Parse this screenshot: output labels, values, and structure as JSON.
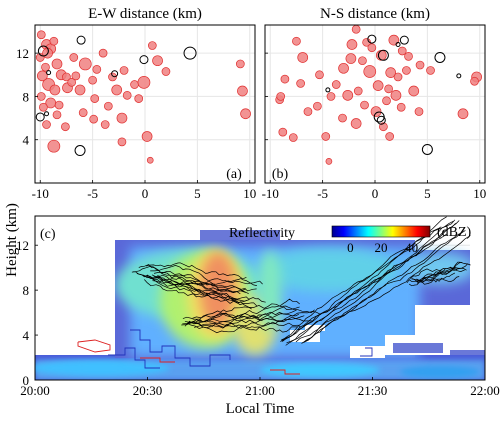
{
  "figure": {
    "ylabel": "Height (km)",
    "xlabel_bottom": "Local Time"
  },
  "colors": {
    "red_fill": "#f08080",
    "red_stroke": "#e03030",
    "hollow_stroke": "#000000",
    "grid": "#e6e6e6",
    "blue_trace": "#2233bb",
    "red_trace": "#dd2222"
  },
  "chart_data": [
    {
      "type": "scatter",
      "panel": "a",
      "title": "E-W distance (km)",
      "panel_label": "(a)",
      "xlim": [
        -10.5,
        10.5
      ],
      "ylim": [
        0,
        14.6
      ],
      "xticks": [
        -10,
        -5,
        0,
        5,
        10
      ],
      "yticks": [
        4,
        8,
        12
      ],
      "grid": true,
      "red_points": [
        [
          -9.9,
          13.7,
          4
        ],
        [
          -9.4,
          12.8,
          5
        ],
        [
          -9.0,
          12.4,
          5
        ],
        [
          -10.0,
          11.6,
          4
        ],
        [
          -8.4,
          11.0,
          5
        ],
        [
          -9.5,
          10.7,
          4
        ],
        [
          -9.8,
          9.9,
          5
        ],
        [
          -9.2,
          9.1,
          6
        ],
        [
          -8.6,
          8.6,
          5
        ],
        [
          -9.9,
          8.0,
          4
        ],
        [
          -9.0,
          7.4,
          5
        ],
        [
          -9.7,
          7.0,
          4
        ],
        [
          -8.2,
          7.2,
          4
        ],
        [
          -8.0,
          10.0,
          5
        ],
        [
          -7.5,
          9.8,
          4
        ],
        [
          -7.4,
          8.8,
          5
        ],
        [
          -7.0,
          9.3,
          4
        ],
        [
          -6.6,
          9.9,
          4
        ],
        [
          -6.8,
          11.6,
          4
        ],
        [
          -5.7,
          11.0,
          6
        ],
        [
          -6.2,
          8.6,
          5
        ],
        [
          -5.0,
          9.5,
          4
        ],
        [
          -4.6,
          10.5,
          4
        ],
        [
          -4.8,
          7.8,
          4
        ],
        [
          -5.9,
          6.5,
          4
        ],
        [
          -4.9,
          5.9,
          4
        ],
        [
          -3.1,
          9.8,
          4
        ],
        [
          -2.7,
          8.6,
          5
        ],
        [
          -2.0,
          10.4,
          4
        ],
        [
          -1.7,
          8.1,
          4
        ],
        [
          -3.5,
          7.1,
          4
        ],
        [
          -2.2,
          6.0,
          5
        ],
        [
          -3.8,
          5.4,
          4
        ],
        [
          -1.0,
          9.1,
          4
        ],
        [
          -0.6,
          7.8,
          4
        ],
        [
          -0.1,
          9.3,
          6
        ],
        [
          0.7,
          12.7,
          4
        ],
        [
          1.2,
          11.3,
          5
        ],
        [
          2.0,
          10.3,
          4
        ],
        [
          0.2,
          4.3,
          5
        ],
        [
          -2.2,
          3.8,
          4
        ],
        [
          -8.7,
          3.4,
          6
        ],
        [
          -9.4,
          5.4,
          4
        ],
        [
          -7.6,
          5.2,
          4
        ],
        [
          -8.4,
          6.3,
          4
        ],
        [
          0.5,
          2.1,
          3
        ],
        [
          9.3,
          8.5,
          5
        ],
        [
          9.6,
          6.4,
          5
        ],
        [
          9.1,
          11.0,
          4
        ],
        [
          -9.3,
          12.0,
          5
        ],
        [
          -8.7,
          13.1,
          4
        ],
        [
          -4.0,
          12.0,
          4
        ]
      ],
      "hollow_points": [
        [
          -9.7,
          12.2,
          5
        ],
        [
          -6.1,
          13.2,
          4
        ],
        [
          -2.9,
          10.1,
          3
        ],
        [
          -0.1,
          11.4,
          4
        ],
        [
          4.3,
          12.0,
          6
        ],
        [
          -10.0,
          6.1,
          4
        ],
        [
          -9.4,
          6.4,
          2
        ],
        [
          -6.2,
          3.0,
          5
        ],
        [
          -9.2,
          10.2,
          2
        ]
      ]
    },
    {
      "type": "scatter",
      "panel": "b",
      "title": "N-S distance (km)",
      "panel_label": "(b)",
      "xlim": [
        -10.5,
        10.5
      ],
      "ylim": [
        0,
        14.6
      ],
      "xticks": [
        -10,
        -5,
        0,
        5,
        10
      ],
      "yticks": [
        4,
        8,
        12
      ],
      "grid": true,
      "red_points": [
        [
          -1.8,
          14.2,
          4
        ],
        [
          -2.2,
          12.8,
          5
        ],
        [
          -0.8,
          13.0,
          4
        ],
        [
          -2.3,
          11.5,
          5
        ],
        [
          -3.0,
          10.6,
          5
        ],
        [
          -1.2,
          11.3,
          4
        ],
        [
          -0.5,
          10.3,
          6
        ],
        [
          0.6,
          11.8,
          5
        ],
        [
          1.8,
          13.2,
          5
        ],
        [
          2.6,
          12.2,
          4
        ],
        [
          1.5,
          10.2,
          5
        ],
        [
          2.2,
          9.8,
          4
        ],
        [
          3.0,
          10.4,
          4
        ],
        [
          0.3,
          9.0,
          5
        ],
        [
          1.3,
          8.7,
          4
        ],
        [
          2.0,
          8.1,
          5
        ],
        [
          -1.6,
          8.5,
          4
        ],
        [
          -2.6,
          8.1,
          5
        ],
        [
          -3.7,
          9.1,
          4
        ],
        [
          -4.2,
          8.0,
          4
        ],
        [
          -1.0,
          7.2,
          4
        ],
        [
          0.1,
          6.6,
          5
        ],
        [
          1.1,
          7.6,
          4
        ],
        [
          2.5,
          7.0,
          4
        ],
        [
          -7.5,
          13.1,
          4
        ],
        [
          -6.9,
          11.6,
          5
        ],
        [
          -5.3,
          10.0,
          4
        ],
        [
          -8.6,
          9.6,
          4
        ],
        [
          -7.1,
          9.2,
          4
        ],
        [
          -5.5,
          7.1,
          4
        ],
        [
          -9.1,
          7.7,
          4
        ],
        [
          -6.4,
          6.6,
          4
        ],
        [
          -3.1,
          6.0,
          4
        ],
        [
          -8.8,
          4.7,
          4
        ],
        [
          -7.8,
          4.2,
          4
        ],
        [
          -4.7,
          4.3,
          4
        ],
        [
          -1.8,
          5.5,
          5
        ],
        [
          0.8,
          5.2,
          4
        ],
        [
          1.4,
          4.3,
          4
        ],
        [
          -4.4,
          2.0,
          3
        ],
        [
          4.3,
          10.9,
          4
        ],
        [
          3.7,
          8.5,
          5
        ],
        [
          5.3,
          10.4,
          4
        ],
        [
          4.2,
          6.6,
          4
        ],
        [
          8.4,
          6.4,
          5
        ],
        [
          9.7,
          9.8,
          5
        ],
        [
          9.5,
          9.4,
          4
        ],
        [
          -9.0,
          8.0,
          4
        ],
        [
          3.2,
          11.7,
          4
        ],
        [
          -0.3,
          12.5,
          4
        ]
      ],
      "hollow_points": [
        [
          -0.3,
          13.3,
          4
        ],
        [
          2.8,
          13.2,
          4
        ],
        [
          0.8,
          11.8,
          5
        ],
        [
          6.2,
          11.6,
          5
        ],
        [
          0.4,
          6.1,
          5
        ],
        [
          0.6,
          5.8,
          4
        ],
        [
          5.0,
          3.1,
          5
        ],
        [
          -4.5,
          8.6,
          2
        ],
        [
          8.0,
          9.9,
          2
        ],
        [
          2.2,
          12.8,
          2
        ]
      ]
    },
    {
      "type": "heatmap",
      "panel": "c",
      "panel_label": "(c)",
      "xlabel": "Local Time",
      "xticks": [
        "20:00",
        "20:30",
        "21:00",
        "21:30",
        "22:00"
      ],
      "xlim_hours": [
        20.0,
        22.0
      ],
      "ylim": [
        0,
        14.6
      ],
      "yticks": [
        0,
        4,
        8,
        12
      ],
      "colorbar_label": "Reflectivity",
      "colorbar_unit": "(dBZ)",
      "colorbar_ticks": [
        "0",
        "20",
        "40"
      ],
      "colorbar_range": [
        -12,
        52
      ],
      "grid": true
    }
  ]
}
